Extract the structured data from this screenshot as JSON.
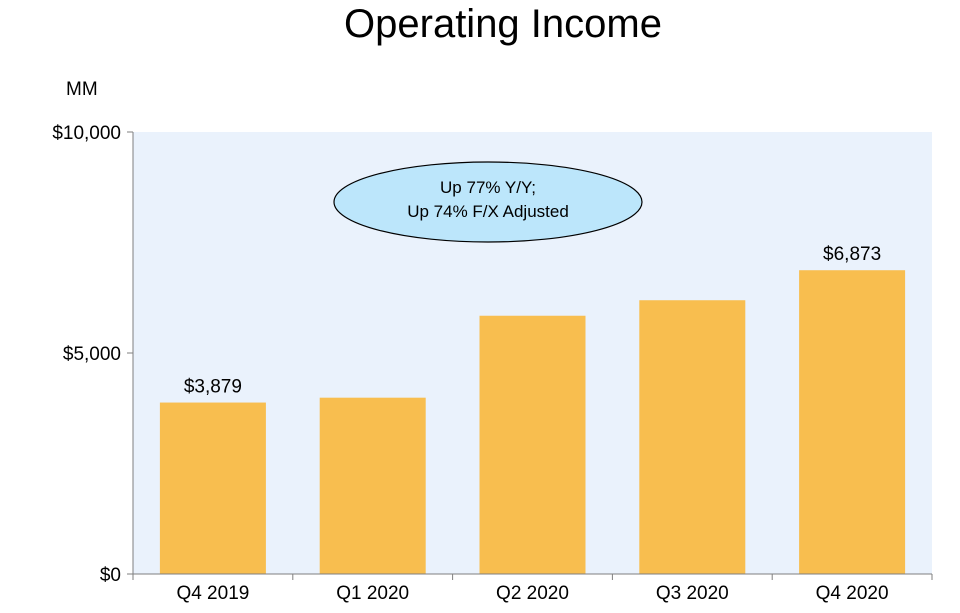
{
  "chart_data": {
    "type": "bar",
    "title": "Operating Income",
    "unit_label": "MM",
    "categories": [
      "Q4 2019",
      "Q1 2020",
      "Q2 2020",
      "Q3 2020",
      "Q4 2020"
    ],
    "values": [
      3879,
      3989,
      5843,
      6194,
      6873
    ],
    "data_labels": [
      "$3,879",
      "",
      "",
      "",
      "$6,873"
    ],
    "ylim": [
      0,
      10000
    ],
    "yticks": [
      0,
      5000,
      10000
    ],
    "ytick_labels": [
      "$0",
      "$5,000",
      "$10,000"
    ],
    "grid": false,
    "annotation": {
      "line1": "Up 77% Y/Y;",
      "line2": "Up 74% F/X Adjusted"
    },
    "colors": {
      "bar": "#F8BE4F",
      "plot_background": "#EAF2FC",
      "callout_fill": "#BCE6FB",
      "axis": "#7F7F7F"
    }
  }
}
